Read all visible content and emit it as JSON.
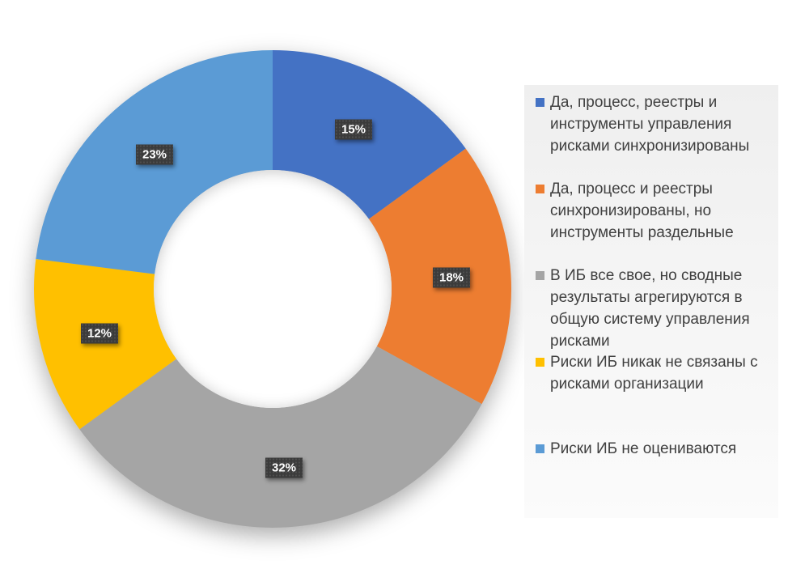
{
  "chart_data": {
    "type": "pie",
    "subtype": "donut",
    "title": "",
    "start_angle_deg": 0,
    "direction": "clockwise",
    "donut_hole_pct": 50,
    "legend_position": "right",
    "label_style": "dark-badge-white-text",
    "categories": [
      "Да, процесс, реестры и инструменты управления рисками синхронизированы",
      "Да, процесс и реестры синхронизированы, но инструменты раздельные",
      "В ИБ все свое, но сводные результаты агрегируются в общую систему управления рисками",
      "Риски ИБ никак не связаны с рисками организации",
      "Риски ИБ не оцениваются"
    ],
    "values": [
      15,
      18,
      32,
      12,
      23
    ],
    "slices": [
      {
        "label": "Да, процесс, реестры и инструменты управления рисками синхронизированы",
        "value": 15,
        "pct_label": "15%",
        "color": "#4472C4"
      },
      {
        "label": "Да, процесс и реестры синхронизированы, но инструменты раздельные",
        "value": 18,
        "pct_label": "18%",
        "color": "#ED7D31"
      },
      {
        "label": "В ИБ все свое, но сводные результаты агрегируются в общую систему управления рисками",
        "value": 32,
        "pct_label": "32%",
        "color": "#A5A5A5"
      },
      {
        "label": "Риски ИБ никак не связаны с рисками организации",
        "value": 12,
        "pct_label": "12%",
        "color": "#FFC000"
      },
      {
        "label": "Риски ИБ не оцениваются",
        "value": 23,
        "pct_label": "23%",
        "color": "#5B9BD5"
      }
    ]
  },
  "style": {
    "label_badge_bg": "#3b3b3b",
    "label_badge_text": "#ffffff",
    "legend_text_color": "#404040",
    "legend_panel_bg": "#f2f2f2",
    "page_bg": "#ffffff"
  }
}
